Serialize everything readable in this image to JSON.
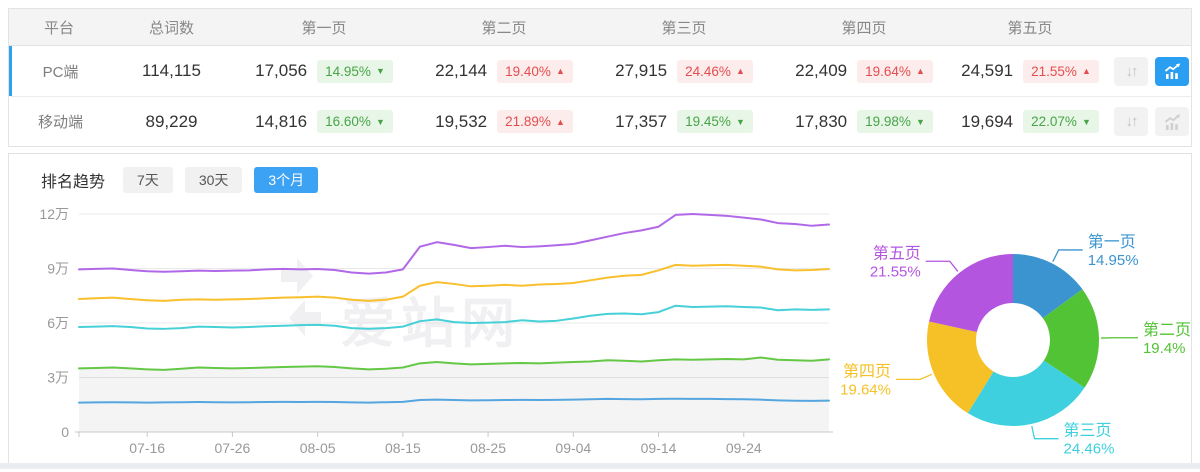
{
  "table": {
    "headers": [
      "平台",
      "总词数",
      "第一页",
      "第二页",
      "第三页",
      "第四页",
      "第五页"
    ],
    "rows": [
      {
        "platform": "PC端",
        "total": "114,115",
        "active": true,
        "chart_active": true,
        "pages": [
          {
            "count": "17,056",
            "pct": "14.95%",
            "dir": "down"
          },
          {
            "count": "22,144",
            "pct": "19.40%",
            "dir": "up"
          },
          {
            "count": "27,915",
            "pct": "24.46%",
            "dir": "up"
          },
          {
            "count": "22,409",
            "pct": "19.64%",
            "dir": "up"
          },
          {
            "count": "24,591",
            "pct": "21.55%",
            "dir": "up"
          }
        ]
      },
      {
        "platform": "移动端",
        "total": "89,229",
        "active": false,
        "chart_active": false,
        "pages": [
          {
            "count": "14,816",
            "pct": "16.60%",
            "dir": "down"
          },
          {
            "count": "19,532",
            "pct": "21.89%",
            "dir": "up"
          },
          {
            "count": "17,357",
            "pct": "19.45%",
            "dir": "down"
          },
          {
            "count": "17,830",
            "pct": "19.98%",
            "dir": "down"
          },
          {
            "count": "19,694",
            "pct": "22.07%",
            "dir": "down"
          }
        ]
      }
    ]
  },
  "icons": {
    "sort_glyph": "↓↑",
    "sort": "sort-arrows-icon",
    "trend": "trend-chart-icon"
  },
  "trend": {
    "title": "排名趋势",
    "tabs": [
      {
        "label": "7天",
        "active": false
      },
      {
        "label": "30天",
        "active": false
      },
      {
        "label": "3个月",
        "active": true
      }
    ]
  },
  "watermark": "爱站网",
  "colors": {
    "accent_blue": "#2a9ff2",
    "badge_up_text": "#e34d4f",
    "badge_down_text": "#47a447",
    "grid": "#e9e9e9",
    "axis_text": "#999999",
    "area_fill": "rgba(150,150,150,0.10)",
    "watermark": "#f0f0f2"
  },
  "chart_data": [
    {
      "type": "line",
      "title": "排名趋势 (3个月, PC端, 累计词数)",
      "x_tick_labels": [
        "07-16",
        "07-26",
        "08-05",
        "08-15",
        "08-25",
        "09-04",
        "09-14",
        "09-24"
      ],
      "x_tick_days": [
        8,
        18,
        28,
        38,
        48,
        58,
        68,
        78
      ],
      "x_range_days": [
        0,
        88
      ],
      "sample_interval_days": 2,
      "y_ticks": [
        "0",
        "3万",
        "6万",
        "9万",
        "12万"
      ],
      "ylim_wan": [
        0,
        12
      ],
      "grid": true,
      "series": [
        {
          "name": "第一页",
          "color": "#55a6e0",
          "values_wan": [
            1.62,
            1.63,
            1.64,
            1.63,
            1.62,
            1.63,
            1.64,
            1.65,
            1.64,
            1.63,
            1.64,
            1.65,
            1.66,
            1.65,
            1.66,
            1.65,
            1.63,
            1.62,
            1.64,
            1.66,
            1.76,
            1.78,
            1.76,
            1.74,
            1.75,
            1.76,
            1.77,
            1.76,
            1.77,
            1.78,
            1.8,
            1.82,
            1.81,
            1.8,
            1.82,
            1.83,
            1.82,
            1.82,
            1.81,
            1.8,
            1.78,
            1.74,
            1.72,
            1.71,
            1.73
          ]
        },
        {
          "name": "第二页",
          "color": "#64c846",
          "area": true,
          "values_wan": [
            3.5,
            3.52,
            3.55,
            3.5,
            3.45,
            3.42,
            3.48,
            3.55,
            3.52,
            3.5,
            3.52,
            3.55,
            3.58,
            3.6,
            3.62,
            3.58,
            3.5,
            3.45,
            3.48,
            3.55,
            3.78,
            3.85,
            3.78,
            3.72,
            3.75,
            3.78,
            3.8,
            3.78,
            3.82,
            3.85,
            3.88,
            3.95,
            3.92,
            3.88,
            3.95,
            4.0,
            3.98,
            4.0,
            4.02,
            4.0,
            4.1,
            3.98,
            3.95,
            3.92,
            4.0
          ]
        },
        {
          "name": "第三页",
          "color": "#46d0d7",
          "values_wan": [
            5.78,
            5.8,
            5.83,
            5.78,
            5.7,
            5.68,
            5.72,
            5.8,
            5.78,
            5.75,
            5.78,
            5.82,
            5.85,
            5.88,
            5.9,
            5.85,
            5.72,
            5.68,
            5.72,
            5.8,
            6.1,
            6.2,
            6.05,
            6.0,
            6.02,
            6.05,
            6.15,
            6.08,
            6.12,
            6.25,
            6.4,
            6.5,
            6.52,
            6.48,
            6.6,
            6.95,
            6.88,
            6.9,
            6.92,
            6.88,
            6.85,
            6.7,
            6.75,
            6.72,
            6.75
          ]
        },
        {
          "name": "第四页",
          "color": "#f9c02e",
          "values_wan": [
            7.32,
            7.36,
            7.4,
            7.32,
            7.25,
            7.22,
            7.28,
            7.3,
            7.28,
            7.3,
            7.32,
            7.36,
            7.4,
            7.42,
            7.45,
            7.4,
            7.28,
            7.22,
            7.28,
            7.45,
            8.05,
            8.25,
            8.15,
            8.02,
            8.05,
            8.1,
            8.05,
            8.12,
            8.15,
            8.2,
            8.35,
            8.5,
            8.6,
            8.65,
            8.9,
            9.2,
            9.15,
            9.18,
            9.2,
            9.15,
            9.1,
            8.95,
            8.9,
            8.92,
            8.97
          ]
        },
        {
          "name": "第五页",
          "color": "#b168e8",
          "values_wan": [
            8.95,
            8.98,
            9.0,
            8.92,
            8.85,
            8.82,
            8.85,
            8.88,
            8.86,
            8.88,
            8.9,
            8.95,
            8.98,
            8.95,
            8.97,
            8.92,
            8.78,
            8.72,
            8.78,
            8.95,
            10.2,
            10.45,
            10.3,
            10.12,
            10.18,
            10.25,
            10.18,
            10.22,
            10.28,
            10.35,
            10.55,
            10.75,
            10.95,
            11.1,
            11.3,
            11.95,
            12.0,
            11.95,
            11.9,
            11.8,
            11.7,
            11.5,
            11.45,
            11.35,
            11.42
          ]
        }
      ]
    },
    {
      "type": "pie",
      "donut": true,
      "slices": [
        {
          "name": "第一页",
          "value": 14.95,
          "pct_label": "14.95%",
          "color": "#3b94d0"
        },
        {
          "name": "第二页",
          "value": 19.4,
          "pct_label": "19.4%",
          "color": "#52c334"
        },
        {
          "name": "第三页",
          "value": 24.46,
          "pct_label": "24.46%",
          "color": "#3ed0de"
        },
        {
          "name": "第四页",
          "value": 19.64,
          "pct_label": "19.64%",
          "color": "#f6c127"
        },
        {
          "name": "第五页",
          "value": 21.55,
          "pct_label": "21.55%",
          "color": "#b455e0"
        }
      ]
    }
  ]
}
